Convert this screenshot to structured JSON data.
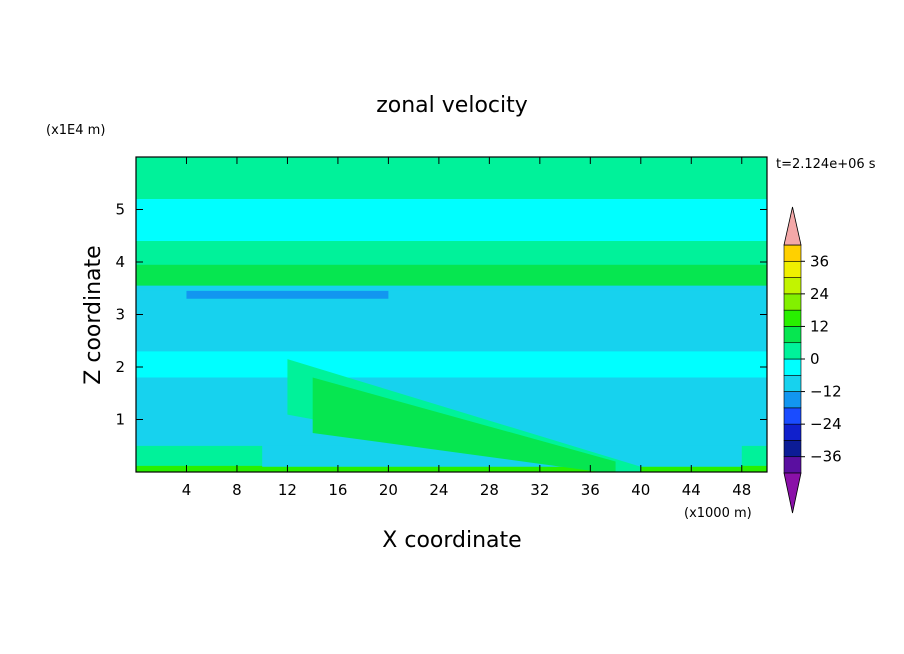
{
  "chart_data": {
    "type": "heatmap",
    "title": "zonal velocity",
    "xlabel": "X coordinate",
    "ylabel": "Z coordinate",
    "x_units": "(x1000 m)",
    "y_units": "(x1E4 m)",
    "time_label": "t=2.124e+06 s",
    "xlim": [
      0,
      50
    ],
    "ylim": [
      0,
      6
    ],
    "x_ticks": [
      4,
      8,
      12,
      16,
      20,
      24,
      28,
      32,
      36,
      40,
      44,
      48
    ],
    "y_ticks": [
      1,
      2,
      3,
      4,
      5
    ],
    "colorbar": {
      "min": -42,
      "max": 42,
      "step": 6,
      "tick_values": [
        36,
        24,
        12,
        0,
        -12,
        -24,
        -36
      ],
      "tick_labels": [
        "36",
        "24",
        "12",
        "0",
        "−12",
        "−24",
        "−36"
      ],
      "colors": [
        "#5a0fa0",
        "#0c1c96",
        "#1020cc",
        "#1a4cff",
        "#1296f0",
        "#17d2ee",
        "#00ffff",
        "#00f29a",
        "#06e650",
        "#28f000",
        "#82f000",
        "#c2f400",
        "#f0f000",
        "#ffd000",
        "#ffa800",
        "#ff7a00",
        "#ff4400",
        "#f01010",
        "#f4a8a8",
        "#9600a8"
      ],
      "over_color": "#f4a8a8",
      "under_color": "#8a10a8"
    },
    "field_description_note": "",
    "bands": [
      {
        "z": [
          0.0,
          0.12
        ],
        "x": [
          0,
          50
        ],
        "value": 15
      },
      {
        "z": [
          0.12,
          0.5
        ],
        "x": [
          0,
          50
        ],
        "value": 0
      },
      {
        "z": [
          0.1,
          0.55
        ],
        "x": [
          10,
          48
        ],
        "value": -10
      },
      {
        "z": [
          0.5,
          1.8
        ],
        "x": [
          0,
          50
        ],
        "value": -9
      },
      {
        "z": [
          1.8,
          2.3
        ],
        "x": [
          0,
          50
        ],
        "value": -6
      },
      {
        "z": [
          2.3,
          3.45
        ],
        "x": [
          0,
          50
        ],
        "value": -8
      },
      {
        "z": [
          3.3,
          3.45
        ],
        "x": [
          4,
          20
        ],
        "value": -16
      },
      {
        "z": [
          3.55,
          3.95
        ],
        "x": [
          0,
          50
        ],
        "value": 9
      },
      {
        "z": [
          3.95,
          4.4
        ],
        "x": [
          0,
          50
        ],
        "value": 3
      },
      {
        "z": [
          4.4,
          5.2
        ],
        "x": [
          0,
          50
        ],
        "value": -3
      },
      {
        "z": [
          5.2,
          6.0
        ],
        "x": [
          0,
          50
        ],
        "value": 0
      }
    ],
    "jet": [
      {
        "z_left": 2.15,
        "z_right": 0.1,
        "x": [
          12,
          40
        ],
        "value": 5
      },
      {
        "z_left": 1.8,
        "z_right": 0.2,
        "x": [
          14,
          38
        ],
        "value": 10
      }
    ]
  }
}
